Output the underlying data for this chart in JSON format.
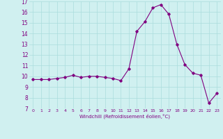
{
  "x": [
    0,
    1,
    2,
    3,
    4,
    5,
    6,
    7,
    8,
    9,
    10,
    11,
    12,
    13,
    14,
    15,
    16,
    17,
    18,
    19,
    20,
    21,
    22,
    23
  ],
  "y": [
    9.7,
    9.7,
    9.7,
    9.8,
    9.9,
    10.1,
    9.9,
    10.0,
    10.0,
    9.9,
    9.8,
    9.6,
    10.7,
    14.2,
    15.1,
    16.4,
    16.7,
    15.8,
    13.0,
    11.1,
    10.3,
    10.1,
    7.5,
    8.4
  ],
  "line_color": "#800080",
  "marker": "D",
  "marker_size": 1.8,
  "line_width": 0.8,
  "bg_color": "#d0f0f0",
  "grid_color": "#aadddd",
  "xlabel": "Windchill (Refroidissement éolien,°C)",
  "xlabel_color": "#800080",
  "tick_color": "#800080",
  "ylim": [
    7,
    17
  ],
  "xlim": [
    -0.5,
    23.5
  ],
  "yticks": [
    7,
    8,
    9,
    10,
    11,
    12,
    13,
    14,
    15,
    16,
    17
  ],
  "xticks": [
    0,
    1,
    2,
    3,
    4,
    5,
    6,
    7,
    8,
    9,
    10,
    11,
    12,
    13,
    14,
    15,
    16,
    17,
    18,
    19,
    20,
    21,
    22,
    23
  ]
}
